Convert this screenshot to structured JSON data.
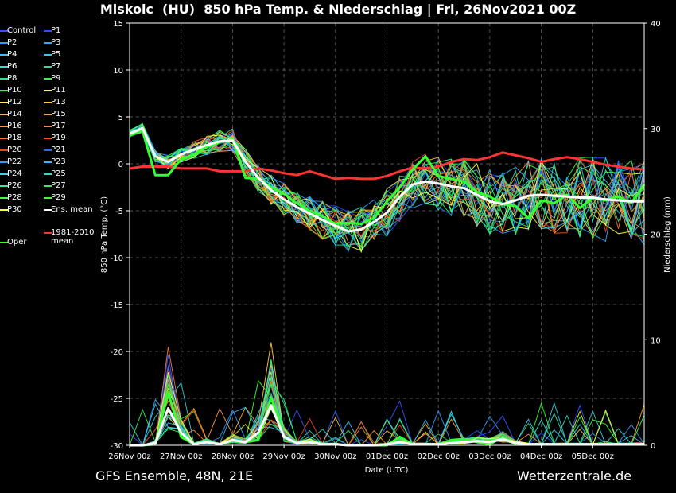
{
  "header": {
    "title": "Miskolc  (HU)  850 hPa Temp. & Niederschlag | Fri, 26Nov2021 00Z"
  },
  "footer": {
    "left": "GFS Ensemble, 48N, 21E",
    "right": "Wetterzentrale.de"
  },
  "legend": {
    "items": [
      {
        "label": "Control",
        "color": "#3355ff"
      },
      {
        "label": "P1",
        "color": "#2255ff"
      },
      {
        "label": "P2",
        "color": "#3399ff"
      },
      {
        "label": "P3",
        "color": "#33aaff"
      },
      {
        "label": "P4",
        "color": "#44bbff"
      },
      {
        "label": "P5",
        "color": "#33ccdd"
      },
      {
        "label": "P6",
        "color": "#33ddcc"
      },
      {
        "label": "P7",
        "color": "#33dd99"
      },
      {
        "label": "P8",
        "color": "#33dd77"
      },
      {
        "label": "P9",
        "color": "#44ee55"
      },
      {
        "label": "P10",
        "color": "#33ff33"
      },
      {
        "label": "P11",
        "color": "#ffff33"
      },
      {
        "label": "P12",
        "color": "#ffee66"
      },
      {
        "label": "P13",
        "color": "#ffcc44"
      },
      {
        "label": "P14",
        "color": "#ffbb33"
      },
      {
        "label": "P15",
        "color": "#ffaa22"
      },
      {
        "label": "P16",
        "color": "#ff9944"
      },
      {
        "label": "P17",
        "color": "#ff8844"
      },
      {
        "label": "P18",
        "color": "#ff7733"
      },
      {
        "label": "P19",
        "color": "#ff5522"
      },
      {
        "label": "P20",
        "color": "#ee4422"
      },
      {
        "label": "P21",
        "color": "#3366ff"
      },
      {
        "label": "P22",
        "color": "#3399ff"
      },
      {
        "label": "P23",
        "color": "#33bbff"
      },
      {
        "label": "P24",
        "color": "#44ccee"
      },
      {
        "label": "P25",
        "color": "#33ddbb"
      },
      {
        "label": "P26",
        "color": "#33ee99"
      },
      {
        "label": "P27",
        "color": "#33ee66"
      },
      {
        "label": "P28",
        "color": "#33ff55"
      },
      {
        "label": "P29",
        "color": "#44ff33"
      },
      {
        "label": "P30",
        "color": "#ffff44"
      },
      {
        "label": "Ens. mean",
        "color": "#ffffff"
      }
    ],
    "oper": {
      "label": "Oper",
      "color": "#33ff33"
    },
    "clim": {
      "label": "1981-2010\nmean",
      "color": "#ff3333"
    }
  },
  "chart_data": {
    "type": "line",
    "title": "Miskolc  (HU)  850 hPa Temp. & Niederschlag | Fri, 26Nov2021 00Z",
    "xlabel": "Date (UTC)",
    "ylabel": "850 hPa Temp. (°C)",
    "y2label": "Niederschlag (mm)",
    "ylim": [
      -30,
      15
    ],
    "y2lim": [
      0,
      40
    ],
    "xlim_hours": [
      0,
      240
    ],
    "x_tick_labels": [
      "26Nov 00z",
      "27Nov 00z",
      "28Nov 00z",
      "29Nov 00z",
      "30Nov 00z",
      "01Dec 00z",
      "02Dec 00z",
      "03Dec 00z",
      "04Dec 00z",
      "05Dec 00z"
    ],
    "y_tick_labels": [
      "15",
      "10",
      "5",
      "0",
      "-5",
      "-10",
      "-15",
      "-20",
      "-25",
      "-30"
    ],
    "y2_tick_labels": [
      "40",
      "30",
      "20",
      "10",
      "0"
    ],
    "grid": true,
    "x_hours": [
      0,
      6,
      12,
      18,
      24,
      30,
      36,
      42,
      48,
      54,
      60,
      66,
      72,
      78,
      84,
      90,
      96,
      102,
      108,
      114,
      120,
      126,
      132,
      138,
      144,
      150,
      156,
      162,
      168,
      174,
      180,
      186,
      192,
      198,
      204,
      210,
      216,
      222,
      228,
      234,
      240
    ],
    "series_temp": [
      {
        "name": "Ens. mean",
        "color": "#ffffff",
        "width": 3,
        "values": [
          3.2,
          3.8,
          0.8,
          0.2,
          1.0,
          1.5,
          2.0,
          2.4,
          2.5,
          0.2,
          -1.5,
          -2.8,
          -3.8,
          -4.6,
          -5.3,
          -6.0,
          -6.6,
          -7.2,
          -7.0,
          -6.2,
          -5.2,
          -3.5,
          -2.2,
          -1.9,
          -2.1,
          -2.4,
          -2.6,
          -3.3,
          -4.0,
          -4.3,
          -3.9,
          -3.4,
          -3.3,
          -3.4,
          -3.5,
          -3.6,
          -3.6,
          -3.8,
          -3.9,
          -4.0,
          -4.0
        ]
      },
      {
        "name": "Oper",
        "color": "#33ff33",
        "width": 3,
        "values": [
          3.0,
          3.5,
          -1.2,
          -1.2,
          0.5,
          1.0,
          1.8,
          2.3,
          2.6,
          -1.5,
          -1.6,
          -2.5,
          -3.2,
          -4.2,
          -5.0,
          -5.6,
          -6.4,
          -6.3,
          -6.4,
          -5.8,
          -4.0,
          -2.5,
          -0.6,
          0.8,
          -1.3,
          -1.6,
          -1.9,
          -3.0,
          -3.5,
          -4.3,
          -4.5,
          -5.8,
          -3.9,
          -4.2,
          -3.3,
          -4.7,
          -3.6,
          -3.9,
          -3.5,
          -4.2,
          -2.2
        ]
      },
      {
        "name": "1981-2010 mean",
        "color": "#ff3333",
        "width": 3,
        "values": [
          -0.5,
          -0.3,
          -0.3,
          -0.3,
          -0.5,
          -0.5,
          -0.5,
          -0.8,
          -0.8,
          -0.8,
          -0.5,
          -0.7,
          -1.0,
          -1.2,
          -0.8,
          -1.2,
          -1.6,
          -1.5,
          -1.6,
          -1.6,
          -1.3,
          -0.8,
          -0.4,
          -0.5,
          -0.3,
          0.2,
          0.5,
          0.4,
          0.7,
          1.2,
          0.9,
          0.6,
          0.2,
          0.5,
          0.7,
          0.5,
          0.2,
          -0.1,
          -0.3,
          -0.5,
          -0.6
        ]
      }
    ],
    "series_precip_mm": [
      {
        "name": "Ens. mean",
        "color": "#ffffff",
        "width": 3,
        "values": [
          0,
          0,
          0.2,
          3.5,
          1.2,
          0.1,
          0.3,
          0.1,
          0.5,
          0.3,
          1.2,
          3.8,
          0.8,
          0.2,
          0.3,
          0.1,
          0.1,
          0,
          0,
          0,
          0.1,
          0.3,
          0.1,
          0.1,
          0.1,
          0.2,
          0.3,
          0.4,
          0.3,
          0.6,
          0.2,
          0.1,
          0.1,
          0.1,
          0.1,
          0.1,
          0.1,
          0.1,
          0.1,
          0.1,
          0.1
        ]
      },
      {
        "name": "Oper",
        "color": "#33ff33",
        "width": 3,
        "values": [
          0,
          0,
          0.1,
          5.0,
          0.8,
          0.1,
          0.3,
          0.1,
          0.4,
          0.3,
          0.5,
          4.5,
          0.8,
          0.2,
          0.3,
          0.1,
          0.1,
          0,
          0,
          0,
          0,
          0.8,
          0.1,
          0.1,
          0.1,
          0.5,
          0.6,
          0.3,
          0.1,
          0.8,
          0.1,
          0.1,
          0.1,
          0.1,
          0.1,
          0.1,
          0.1,
          0.1,
          0.1,
          0.1,
          0.1
        ]
      }
    ],
    "ensemble_note": "31 thin ensemble member lines (Control, P1–P30) drawn in their legend colours around the mean"
  }
}
